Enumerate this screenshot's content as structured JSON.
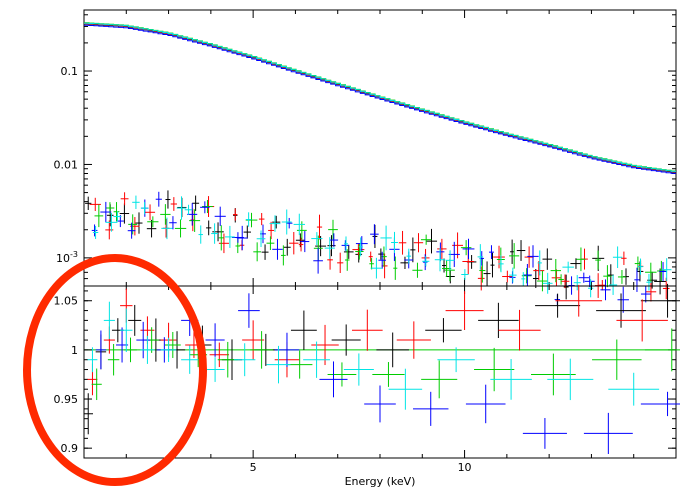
{
  "chart_data": [
    {
      "type": "scatter",
      "panel": "spectrum",
      "title": "",
      "xlabel": "",
      "ylabel": "",
      "log_y": true,
      "xlim": [
        1.0,
        15.0
      ],
      "ylim": [
        0.0005,
        0.45
      ],
      "y_ticks": [
        {
          "value": 0.1,
          "label": "0.1"
        },
        {
          "value": 0.01,
          "label": "0.01"
        },
        {
          "value": 0.001,
          "label": "10^-3"
        }
      ],
      "colors": {
        "black": "#000000",
        "red": "#ff0000",
        "green": "#00cc00",
        "blue": "#0000ff",
        "cyan": "#00e5e5"
      },
      "model_curve": {
        "x": [
          1.0,
          2.0,
          3.0,
          4.0,
          5.0,
          6.0,
          7.0,
          8.0,
          9.0,
          10.0,
          11.0,
          12.0,
          13.0,
          14.0,
          15.0
        ],
        "y": [
          0.32,
          0.3,
          0.25,
          0.19,
          0.14,
          0.1,
          0.072,
          0.052,
          0.038,
          0.028,
          0.021,
          0.016,
          0.012,
          0.0095,
          0.0082
        ]
      },
      "background_trend": {
        "x": [
          1.0,
          3.0,
          5.0,
          7.0,
          9.0,
          11.0,
          13.0,
          15.0
        ],
        "y": [
          0.0026,
          0.0032,
          0.0018,
          0.0013,
          0.0011,
          0.0008,
          0.00072,
          0.00065
        ]
      },
      "series": [
        {
          "color": "black"
        },
        {
          "color": "red"
        },
        {
          "color": "green"
        },
        {
          "color": "blue"
        },
        {
          "color": "cyan"
        }
      ]
    },
    {
      "type": "scatter",
      "panel": "ratio",
      "title": "",
      "xlabel": "Energy (keV)",
      "ylabel": "",
      "xlim": [
        1.0,
        15.0
      ],
      "ylim": [
        0.89,
        1.065
      ],
      "x_ticks": [
        {
          "value": 5,
          "label": "5"
        },
        {
          "value": 10,
          "label": "10"
        }
      ],
      "y_ticks": [
        {
          "value": 1.05,
          "label": "1.05"
        },
        {
          "value": 1.0,
          "label": "1"
        },
        {
          "value": 0.95,
          "label": "0.95"
        },
        {
          "value": 0.9,
          "label": "0.9"
        }
      ],
      "reference_line": 1.0,
      "series": [
        {
          "color": "black",
          "x": [
            1.1,
            1.4,
            1.8,
            2.2,
            2.7,
            3.2,
            3.8,
            4.5,
            5.3,
            6.2,
            7.2,
            8.3,
            9.5,
            10.8,
            12.2,
            13.7,
            14.8
          ],
          "y": [
            0.935,
            0.998,
            1.02,
            1.03,
            1.01,
            1.0,
            1.005,
            0.99,
            1.0,
            1.02,
            1.01,
            1.0,
            1.02,
            1.03,
            1.045,
            1.04,
            1.05
          ]
        },
        {
          "color": "red",
          "x": [
            1.2,
            1.6,
            2.0,
            2.5,
            3.0,
            3.6,
            4.2,
            5.0,
            5.8,
            6.7,
            7.7,
            8.8,
            10.0,
            11.3,
            12.7,
            14.2
          ],
          "y": [
            0.97,
            1.01,
            1.045,
            1.02,
            1.01,
            1.005,
            0.995,
            1.01,
            0.99,
            1.005,
            1.02,
            1.01,
            1.04,
            1.02,
            1.05,
            1.03
          ]
        },
        {
          "color": "green",
          "x": [
            1.3,
            1.7,
            2.1,
            2.6,
            3.1,
            3.7,
            4.4,
            5.2,
            6.1,
            7.1,
            8.2,
            9.4,
            10.7,
            12.1,
            13.6,
            14.9
          ],
          "y": [
            0.965,
            0.99,
            1.0,
            1.01,
            1.005,
            0.995,
            0.99,
            1.0,
            0.985,
            0.975,
            0.975,
            0.97,
            0.98,
            0.975,
            0.99,
            1.0
          ]
        },
        {
          "color": "blue",
          "x": [
            1.4,
            1.9,
            2.4,
            2.9,
            3.5,
            4.1,
            4.9,
            5.8,
            6.9,
            8.0,
            9.2,
            10.5,
            11.9,
            13.4,
            14.8
          ],
          "y": [
            1.0,
            1.005,
            1.01,
            1.0,
            1.03,
            1.01,
            1.04,
            1.0,
            0.97,
            0.945,
            0.94,
            0.945,
            0.915,
            0.915,
            0.945
          ]
        },
        {
          "color": "cyan",
          "x": [
            1.2,
            1.6,
            2.0,
            2.5,
            3.0,
            3.5,
            4.1,
            4.8,
            5.6,
            6.5,
            7.5,
            8.6,
            9.8,
            11.1,
            12.5,
            14.0
          ],
          "y": [
            0.99,
            1.03,
            1.02,
            1.0,
            1.0,
            0.99,
            0.98,
            0.99,
            0.985,
            0.99,
            0.98,
            0.96,
            0.99,
            0.97,
            0.97,
            0.96
          ]
        }
      ],
      "highlight": {
        "shape": "ellipse",
        "color": "#ff2a00",
        "covers_x": [
          1.0,
          3.8
        ]
      }
    }
  ]
}
